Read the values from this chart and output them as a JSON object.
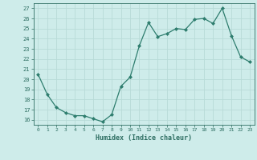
{
  "x": [
    0,
    1,
    2,
    3,
    4,
    5,
    6,
    7,
    8,
    9,
    10,
    11,
    12,
    13,
    14,
    15,
    16,
    17,
    18,
    19,
    20,
    21,
    22,
    23
  ],
  "y": [
    20.5,
    18.5,
    17.2,
    16.7,
    16.4,
    16.4,
    16.1,
    15.8,
    16.5,
    19.3,
    20.2,
    23.3,
    25.6,
    24.2,
    24.5,
    25.0,
    24.9,
    25.9,
    26.0,
    25.5,
    27.0,
    24.3,
    22.2,
    21.7
  ],
  "line_color": "#2e7d6e",
  "marker": "D",
  "marker_size": 2,
  "background_color": "#ceecea",
  "grid_color": "#b8dbd8",
  "tick_color": "#2e6e62",
  "xlabel": "Humidex (Indice chaleur)",
  "ylabel_ticks": [
    16,
    17,
    18,
    19,
    20,
    21,
    22,
    23,
    24,
    25,
    26,
    27
  ],
  "xlim": [
    -0.5,
    23.5
  ],
  "ylim": [
    15.5,
    27.5
  ]
}
